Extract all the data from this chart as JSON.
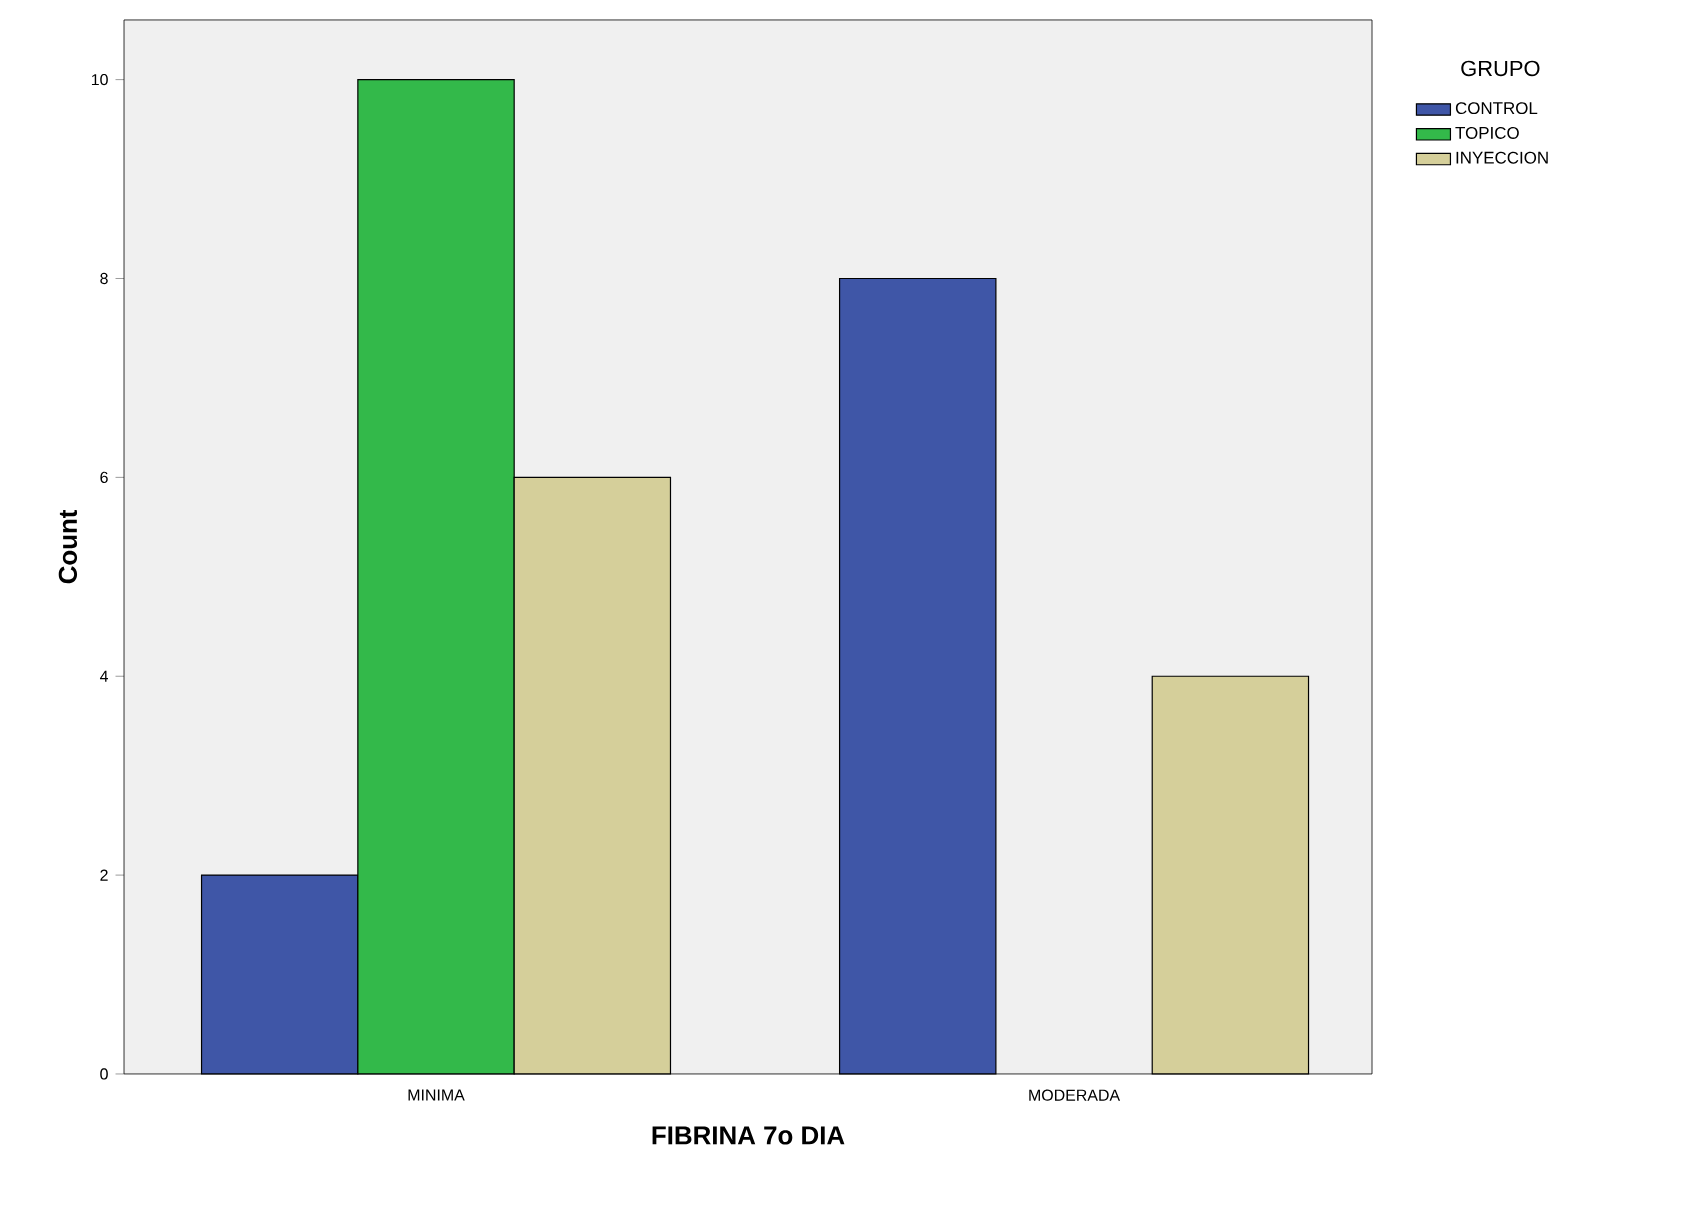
{
  "chart_data": {
    "type": "bar",
    "xlabel": "FIBRINA 7o DIA",
    "ylabel": "Count",
    "legend_title": "GRUPO",
    "categories": [
      "MINIMA",
      "MODERADA"
    ],
    "series": [
      {
        "name": "CONTROL",
        "color": "#3f56a7",
        "values": [
          2,
          8
        ]
      },
      {
        "name": "TOPICO",
        "color": "#33b94a",
        "values": [
          10,
          null
        ]
      },
      {
        "name": "INYECCION",
        "color": "#d5cf9a",
        "values": [
          6,
          4
        ]
      }
    ],
    "ylim": [
      0,
      10.6
    ],
    "yticks": [
      0,
      2,
      4,
      6,
      8,
      10
    ],
    "grid": false,
    "legend": "top right"
  }
}
